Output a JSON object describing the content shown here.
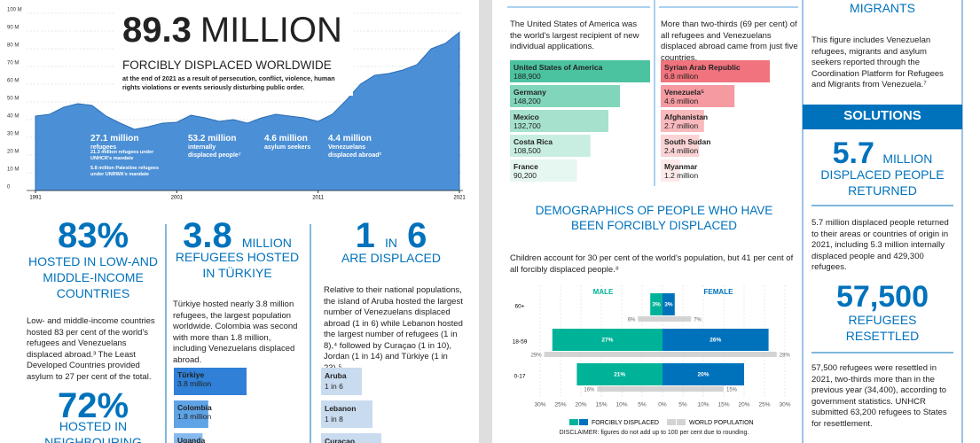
{
  "left": {
    "col1": {
      "big": "83%",
      "heading": "HOSTED IN LOW-AND MIDDLE-INCOME COUNTRIES",
      "body": "Low- and middle-income countries hosted 83 per cent of the world's refugees and Venezuelans displaced abroad.³ The Least Developed Countries provided asylum to 27 per cent of the total.",
      "big2": "72%",
      "heading2": "HOSTED IN NEIGHBOURING"
    },
    "col2": {
      "big": "3.8",
      "big_unit": "MILLION",
      "heading": "REFUGEES HOSTED IN TÜRKIYE",
      "body": "Türkiye hosted nearly 3.8 million refugees, the largest population worldwide. Colombia was second with more than 1.8 million, including Venezuelans displaced abroad."
    },
    "col3": {
      "big_1": "1",
      "big_in": "IN",
      "big_6": "6",
      "heading": "ARE DISPLACED",
      "body": "Relative to their national populations, the island of Aruba hosted the largest number of Venezuelans displaced abroad (1 in 6) while Lebanon hosted the largest number of refugees (1 in 8),⁴ followed by Curaçao (1 in 10), Jordan (1 in 14) and Türkiye (1 in 23).⁵",
      "cards": [
        {
          "name": "Aruba",
          "label": "1 in 6"
        },
        {
          "name": "Lebanon",
          "label": "1 in 8"
        },
        {
          "name": "Curaçao"
        }
      ]
    }
  },
  "right": {
    "asylum_text": "The United States of America was the world's largest recipient of new individual applications.",
    "origin_text": "More than two-thirds (69 per cent) of all refugees and Venezuelans displaced abroad came from just five countries.",
    "demographics_title": "DEMOGRAPHICS OF PEOPLE WHO HAVE BEEN FORCIBLY DISPLACED",
    "demographics_text": "Children account for 30 per cent of the world's population, but 41 per cent of all forcibly displaced people.⁸",
    "disclaimer": "DISCLAIMER: figures do not add up to 100 per cent due to rounding."
  },
  "sidebar": {
    "migrants_title": "MIGRANTS",
    "migrants_text": "This figure includes Venezuelan refugees, migrants and asylum seekers reported through the Coordination Platform for Refugees and Migrants from Venezuela.⁷",
    "solutions_title": "SOLUTIONS",
    "returned_big": "5.7",
    "returned_unit": "MILLION",
    "returned_heading": "DISPLACED PEOPLE RETURNED",
    "returned_text": "5.7 million displaced people returned to their areas or countries of origin in 2021, including 5.3 million internally displaced people and 429,300 refugees.",
    "resettled_big": "57,500",
    "resettled_heading": "REFUGEES RESETTLED",
    "resettled_text": "57,500 refugees were resettled in 2021, two-thirds more than in the previous year (34,400), according to government statistics. UNHCR submitted 63,200 refugees to States for resettlement."
  },
  "chart_data": [
    {
      "type": "area",
      "title_value": "89.3",
      "title_unit": "MILLION",
      "subtitle": "FORCIBLY DISPLACED WORLDWIDE",
      "description": "at the end of 2021 as a result of persecution, conflict, violence, human rights violations or events seriously disturbing public order.",
      "x": [
        1991,
        1992,
        1993,
        1994,
        1995,
        1996,
        1997,
        1998,
        1999,
        2000,
        2001,
        2002,
        2003,
        2004,
        2005,
        2006,
        2007,
        2008,
        2009,
        2010,
        2011,
        2012,
        2013,
        2014,
        2015,
        2016,
        2017,
        2018,
        2019,
        2020,
        2021
      ],
      "values": [
        42,
        43,
        47,
        49,
        48,
        42,
        38,
        34.5,
        36,
        38,
        38.5,
        42.5,
        41,
        39,
        40,
        38,
        41,
        43,
        42,
        41,
        39,
        43,
        51,
        60,
        65,
        66,
        68,
        71,
        80,
        83,
        89.3
      ],
      "color": "#4b8fd6",
      "line_color": "#2a6db5",
      "xlim": [
        1991,
        2021
      ],
      "xticks": [
        1991,
        2001,
        2011,
        2021
      ],
      "ylim": [
        0,
        100
      ],
      "yticks": [
        0,
        {
          "value": 10,
          "label": "10 M"
        },
        {
          "value": 20,
          "label": "20 M"
        },
        {
          "value": 30,
          "label": "30 M"
        },
        {
          "value": 40,
          "label": "40 M"
        },
        {
          "value": 50,
          "label": "50 M"
        },
        {
          "value": 60,
          "label": "60 M"
        },
        {
          "value": 70,
          "label": "70 M"
        },
        {
          "value": 80,
          "label": "80 M"
        },
        {
          "value": 90,
          "label": "90 M"
        },
        {
          "value": 100,
          "label": "100 M"
        }
      ],
      "grid": true,
      "annotations": [
        {
          "value": "27.1 million",
          "label": "refugees"
        },
        {
          "value": "53.2 million",
          "label": "internally displaced people⁷"
        },
        {
          "value": "4.6 million",
          "label": "asylum seekers"
        },
        {
          "value": "4.4 million",
          "label": "Venezuelans displaced abroad²"
        }
      ],
      "sub_annotations": [
        "21.3 million refugees under UNHCR's mandate",
        "5.8 million Palestine refugees under UNRWA's mandate"
      ]
    },
    {
      "type": "hbar",
      "categories": [
        "Türkiye",
        "Colombia",
        "Uganda"
      ],
      "values": [
        3.8,
        1.8,
        1.5
      ],
      "value_labels": [
        "3.8 million",
        "1.8 million",
        null
      ],
      "colors": [
        "#2f80d6",
        "#5ea3e6",
        "#86baee"
      ]
    },
    {
      "type": "hbar",
      "categories": [
        "United States of America",
        "Germany",
        "Mexico",
        "Costa Rica",
        "France"
      ],
      "values": [
        188900,
        148200,
        132700,
        108500,
        90200
      ],
      "value_labels": [
        "188,900",
        "148,200",
        "132,700",
        "108,500",
        "90,200"
      ],
      "colors": [
        "#4cc3a0",
        "#80d5bb",
        "#a6e1ce",
        "#c8ede1",
        "#e6f6f0"
      ]
    },
    {
      "type": "hbar",
      "categories": [
        "Syrian Arab Republic",
        "Venezuela⁵",
        "Afghanistan",
        "South Sudan",
        "Myanmar"
      ],
      "values": [
        6.8,
        4.6,
        2.7,
        2.4,
        1.2
      ],
      "value_labels": [
        "6.8 million",
        "4.6 million",
        "2.7 million",
        "2.4 million",
        "1.2 million"
      ],
      "colors": [
        "#f0737d",
        "#f59aa1",
        "#f8b9bd",
        "#fad3d5",
        "#fde9ea"
      ]
    },
    {
      "type": "pyramid",
      "groups": [
        "MALE",
        "FEMALE"
      ],
      "categories": [
        "60+",
        "18-59",
        "0-17"
      ],
      "series": [
        {
          "name": "FORCIBLY DISPLACED",
          "colors": [
            "#00b398",
            "#0072bc"
          ],
          "male": [
            3,
            27,
            21
          ],
          "female": [
            3,
            26,
            20
          ],
          "male_labels": [
            "3%",
            "27%",
            "21%"
          ],
          "female_labels": [
            "3%",
            "26%",
            "20%"
          ]
        },
        {
          "name": "WORLD POPULATION",
          "colors": [
            "#d3d3d3",
            "#d3d3d3"
          ],
          "male": [
            6,
            29,
            16
          ],
          "female": [
            7,
            28,
            15
          ],
          "male_labels": [
            "6%",
            "29%",
            "16%"
          ],
          "female_labels": [
            "7%",
            "28%",
            "15%"
          ]
        }
      ],
      "xlim": [
        -30,
        30
      ],
      "xticks": [
        {
          "value": -30,
          "label": "30%"
        },
        {
          "value": -25,
          "label": "25%"
        },
        {
          "value": -20,
          "label": "20%"
        },
        {
          "value": -15,
          "label": "15%"
        },
        {
          "value": -10,
          "label": "10%"
        },
        {
          "value": -5,
          "label": "5%"
        },
        {
          "value": 0,
          "label": "0%"
        },
        {
          "value": 5,
          "label": "5%"
        },
        {
          "value": 10,
          "label": "10%"
        },
        {
          "value": 15,
          "label": "15%"
        },
        {
          "value": 20,
          "label": "20%"
        },
        {
          "value": 25,
          "label": "25%"
        },
        {
          "value": 30,
          "label": "30%"
        }
      ],
      "grid": true
    }
  ]
}
